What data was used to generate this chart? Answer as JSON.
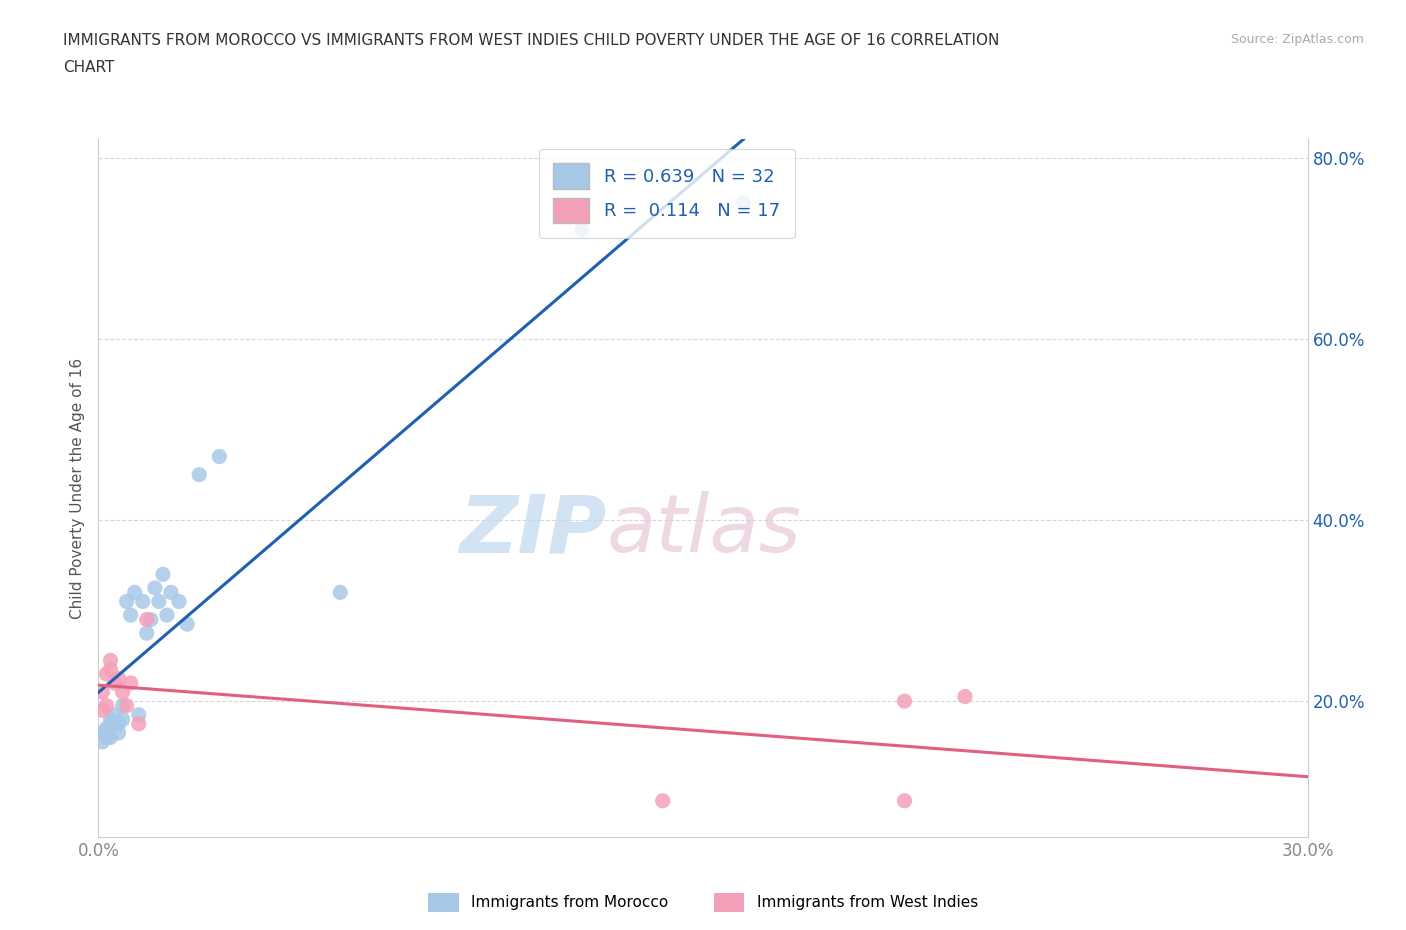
{
  "title_line1": "IMMIGRANTS FROM MOROCCO VS IMMIGRANTS FROM WEST INDIES CHILD POVERTY UNDER THE AGE OF 16 CORRELATION",
  "title_line2": "CHART",
  "source": "Source: ZipAtlas.com",
  "ylabel": "Child Poverty Under the Age of 16",
  "xlim": [
    0.0,
    0.3
  ],
  "ylim": [
    0.05,
    0.82
  ],
  "xticks": [
    0.0,
    0.05,
    0.1,
    0.15,
    0.2,
    0.25,
    0.3
  ],
  "yticks": [
    0.2,
    0.4,
    0.6,
    0.8
  ],
  "morocco_color": "#a8c8e8",
  "westindies_color": "#f4a0b8",
  "morocco_line_color": "#2060b0",
  "westindies_line_color": "#e06080",
  "morocco_R": 0.639,
  "morocco_N": 32,
  "westindies_R": 0.114,
  "westindies_N": 17,
  "watermark_ZIP": "ZIP",
  "watermark_atlas": "atlas",
  "watermark_color_blue": "#c0d8ee",
  "watermark_color_pink": "#e8c8d8",
  "legend_label_morocco": "Immigrants from Morocco",
  "legend_label_westindies": "Immigrants from West Indies",
  "morocco_x": [
    0.001,
    0.001,
    0.002,
    0.002,
    0.003,
    0.003,
    0.003,
    0.004,
    0.004,
    0.005,
    0.005,
    0.006,
    0.006,
    0.007,
    0.008,
    0.009,
    0.01,
    0.011,
    0.012,
    0.013,
    0.014,
    0.015,
    0.016,
    0.017,
    0.018,
    0.02,
    0.022,
    0.025,
    0.03,
    0.06,
    0.12,
    0.16
  ],
  "morocco_y": [
    0.155,
    0.165,
    0.16,
    0.17,
    0.175,
    0.16,
    0.18,
    0.175,
    0.185,
    0.175,
    0.165,
    0.18,
    0.195,
    0.31,
    0.295,
    0.32,
    0.185,
    0.31,
    0.275,
    0.29,
    0.325,
    0.31,
    0.34,
    0.295,
    0.32,
    0.31,
    0.285,
    0.45,
    0.47,
    0.32,
    0.72,
    0.75
  ],
  "westindies_x": [
    0.001,
    0.001,
    0.002,
    0.002,
    0.003,
    0.003,
    0.004,
    0.005,
    0.006,
    0.007,
    0.008,
    0.01,
    0.012,
    0.14,
    0.2,
    0.2,
    0.215
  ],
  "westindies_y": [
    0.19,
    0.21,
    0.195,
    0.23,
    0.235,
    0.245,
    0.22,
    0.225,
    0.21,
    0.195,
    0.22,
    0.175,
    0.29,
    0.09,
    0.09,
    0.2,
    0.205
  ],
  "background_color": "#ffffff",
  "grid_color": "#d8d8d8",
  "spine_color": "#cccccc",
  "tick_color": "#888888",
  "ytick_label_color": "#2060b0",
  "xtick_label_color": "#888888"
}
